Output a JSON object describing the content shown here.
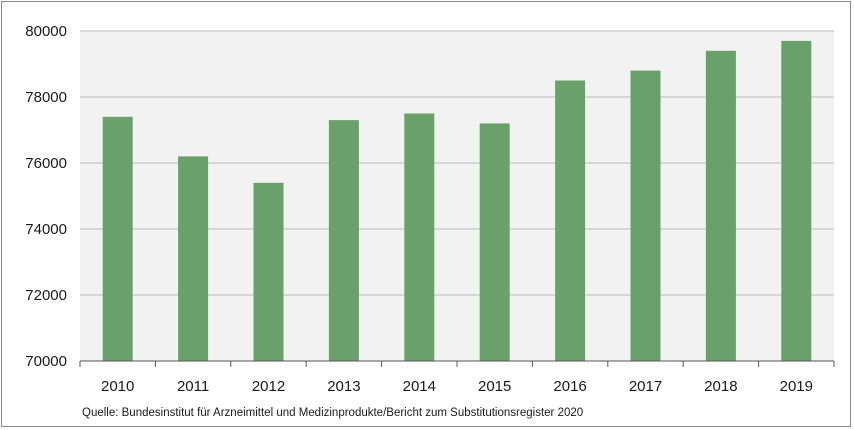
{
  "chart_data": {
    "type": "bar",
    "title": "",
    "xlabel": "",
    "ylabel": "",
    "categories": [
      "2010",
      "2011",
      "2012",
      "2013",
      "2014",
      "2015",
      "2016",
      "2017",
      "2018",
      "2019"
    ],
    "values": [
      77400,
      76200,
      75400,
      77300,
      77500,
      77200,
      78500,
      78800,
      79400,
      79700
    ],
    "ylim": [
      70000,
      80000
    ],
    "yticks": [
      "70000",
      "72000",
      "74000",
      "76000",
      "78000",
      "80000"
    ],
    "grid": true,
    "legend": "none",
    "bar_color": "#6aa16a",
    "plot_background": "#f2f2f2",
    "gridline_color": "#bcbcbc"
  },
  "source_note": "Quelle: Bundesinstitut für Arzneimittel und Medizinprodukte/Bericht zum Substitutionsregister 2020"
}
